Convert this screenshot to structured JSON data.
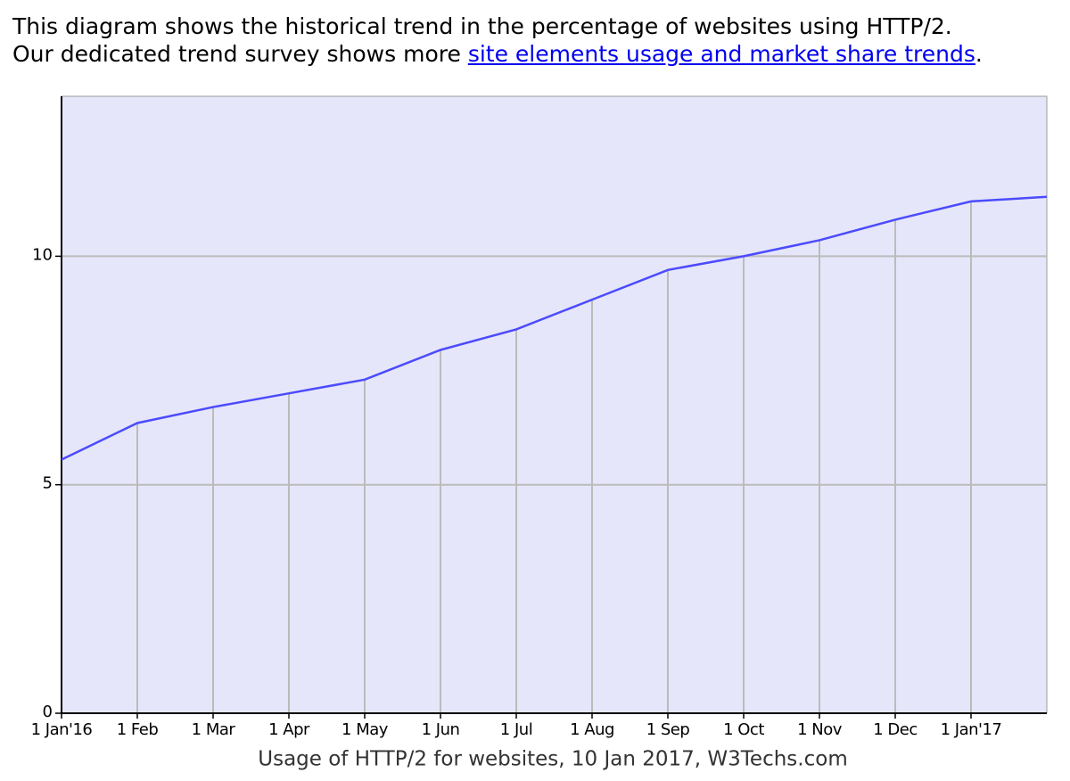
{
  "intro": {
    "line1": "This diagram shows the historical trend in the percentage of websites using HTTP/2.",
    "line2_prefix": "Our dedicated trend survey shows more",
    "link": "site elements usage and market share trends",
    "line2_suffix": "."
  },
  "chart_data": {
    "type": "line",
    "caption": "Usage of HTTP/2 for websites, 10 Jan 2017, W3Techs.com",
    "categories": [
      "1 Jan'16",
      "1 Feb",
      "1 Mar",
      "1 Apr",
      "1 May",
      "1 Jun",
      "1 Jul",
      "1 Aug",
      "1 Sep",
      "1 Oct",
      "1 Nov",
      "1 Dec",
      "1 Jan'17",
      null
    ],
    "values": [
      5.55,
      6.35,
      6.7,
      7.0,
      7.3,
      7.95,
      8.4,
      9.05,
      9.7,
      10.0,
      10.35,
      10.8,
      11.2,
      11.3
    ],
    "color": "#4b4bff",
    "background": "#e6e6fa",
    "ylim": [
      0,
      13.5
    ],
    "yticks": [
      0,
      5,
      10
    ],
    "grid": true
  }
}
